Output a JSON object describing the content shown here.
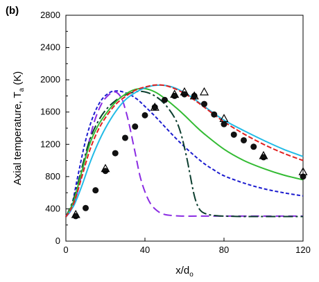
{
  "panel_label": "(b)",
  "chart_data": {
    "type": "line",
    "xlabel_main": "x/d",
    "xlabel_sub": "o",
    "ylabel_main": "Axial temperature, T",
    "ylabel_sub": "a",
    "ylabel_unit": " (K)",
    "xlim": [
      0,
      120
    ],
    "ylim": [
      0,
      2800
    ],
    "xticks": [
      0,
      40,
      80,
      120
    ],
    "yticks": [
      0,
      400,
      800,
      1200,
      1600,
      2000,
      2400,
      2800
    ],
    "grid": false,
    "series": [
      {
        "style": "dashed",
        "color": "#1c1ccf",
        "x": [
          0,
          3,
          6,
          10,
          14,
          18,
          22,
          25,
          28,
          32,
          36,
          40,
          45,
          50,
          55,
          60,
          65,
          70,
          75,
          80,
          90,
          100,
          110,
          120
        ],
        "y": [
          310,
          450,
          800,
          1250,
          1560,
          1750,
          1840,
          1860,
          1855,
          1820,
          1760,
          1670,
          1550,
          1420,
          1290,
          1170,
          1060,
          960,
          880,
          810,
          720,
          650,
          600,
          560
        ]
      },
      {
        "style": "long-dash",
        "color": "#8a2be2",
        "x": [
          0,
          3,
          6,
          10,
          14,
          18,
          22,
          25,
          28,
          30,
          32,
          35,
          38,
          42,
          46,
          50,
          55,
          60,
          70,
          80,
          100,
          120
        ],
        "y": [
          300,
          400,
          620,
          1050,
          1450,
          1700,
          1820,
          1850,
          1780,
          1640,
          1450,
          1100,
          760,
          500,
          380,
          330,
          315,
          310,
          310,
          310,
          310,
          310
        ]
      },
      {
        "style": "dash-dot",
        "color": "#0b3d2e",
        "x": [
          0,
          4,
          8,
          12,
          16,
          20,
          25,
          30,
          35,
          40,
          45,
          50,
          55,
          58,
          61,
          63,
          65,
          67,
          69,
          72,
          76,
          80,
          90,
          100,
          120
        ],
        "y": [
          300,
          530,
          900,
          1250,
          1470,
          1620,
          1740,
          1810,
          1850,
          1850,
          1800,
          1700,
          1530,
          1350,
          1050,
          800,
          560,
          420,
          360,
          330,
          315,
          310,
          305,
          305,
          305
        ]
      },
      {
        "style": "solid",
        "color": "#33bb33",
        "x": [
          0,
          4,
          8,
          12,
          16,
          20,
          25,
          30,
          35,
          40,
          45,
          50,
          55,
          60,
          65,
          70,
          80,
          90,
          100,
          110,
          120
        ],
        "y": [
          300,
          500,
          860,
          1200,
          1420,
          1570,
          1720,
          1820,
          1880,
          1890,
          1850,
          1770,
          1670,
          1560,
          1440,
          1330,
          1140,
          1000,
          900,
          820,
          760
        ]
      },
      {
        "style": "solid",
        "color": "#22bbe6",
        "x": [
          0,
          4,
          8,
          12,
          16,
          20,
          25,
          30,
          35,
          40,
          45,
          50,
          55,
          60,
          65,
          70,
          80,
          90,
          100,
          110,
          120
        ],
        "y": [
          300,
          440,
          680,
          960,
          1200,
          1400,
          1600,
          1750,
          1840,
          1900,
          1930,
          1930,
          1900,
          1840,
          1760,
          1670,
          1500,
          1370,
          1250,
          1140,
          1050
        ]
      },
      {
        "style": "short-dash",
        "color": "#e02020",
        "x": [
          0,
          4,
          8,
          12,
          16,
          20,
          25,
          30,
          35,
          40,
          45,
          50,
          55,
          60,
          65,
          70,
          80,
          90,
          100,
          110,
          120
        ],
        "y": [
          300,
          470,
          790,
          1120,
          1360,
          1530,
          1690,
          1790,
          1870,
          1910,
          1935,
          1930,
          1890,
          1830,
          1750,
          1660,
          1480,
          1330,
          1200,
          1090,
          1000
        ]
      }
    ],
    "markers": [
      {
        "shape": "circle-filled",
        "x": [
          5,
          10,
          15,
          20,
          25,
          30,
          35,
          40,
          45,
          50,
          55,
          60,
          65,
          70,
          75,
          80,
          85,
          90,
          95,
          100,
          120
        ],
        "y": [
          310,
          410,
          630,
          870,
          1090,
          1280,
          1420,
          1560,
          1660,
          1750,
          1800,
          1820,
          1800,
          1700,
          1570,
          1450,
          1320,
          1250,
          1170,
          1040,
          800
        ]
      },
      {
        "shape": "triangle-open",
        "x": [
          5,
          20,
          45,
          55,
          60,
          65,
          70,
          80,
          100,
          120
        ],
        "y": [
          330,
          900,
          1660,
          1820,
          1850,
          1800,
          1850,
          1520,
          1060,
          860
        ]
      }
    ]
  }
}
